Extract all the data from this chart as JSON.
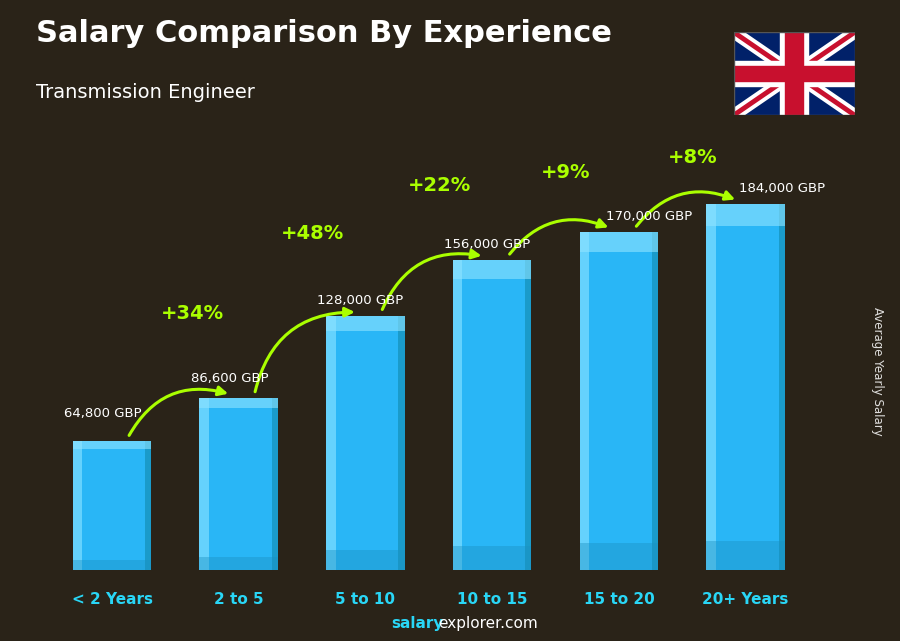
{
  "title": "Salary Comparison By Experience",
  "subtitle": "Transmission Engineer",
  "categories": [
    "< 2 Years",
    "2 to 5",
    "5 to 10",
    "10 to 15",
    "15 to 20",
    "20+ Years"
  ],
  "values": [
    64800,
    86600,
    128000,
    156000,
    170000,
    184000
  ],
  "labels": [
    "64,800 GBP",
    "86,600 GBP",
    "128,000 GBP",
    "156,000 GBP",
    "170,000 GBP",
    "184,000 GBP"
  ],
  "increases": [
    "+34%",
    "+48%",
    "+22%",
    "+9%",
    "+8%"
  ],
  "bar_color_main": "#29b6f6",
  "bar_color_left": "#55ccff",
  "bar_color_dark": "#1a90c0",
  "bar_color_top": "#7de8ff",
  "increase_color": "#aaff00",
  "title_color": "#ffffff",
  "subtitle_color": "#ffffff",
  "label_color": "#ffffff",
  "category_color": "#29d6f6",
  "watermark_bold": "salary",
  "watermark_rest": "explorer.com",
  "ylabel": "Average Yearly Salary",
  "bg_color": "#3a3020",
  "figsize": [
    9.0,
    6.41
  ],
  "dpi": 100
}
